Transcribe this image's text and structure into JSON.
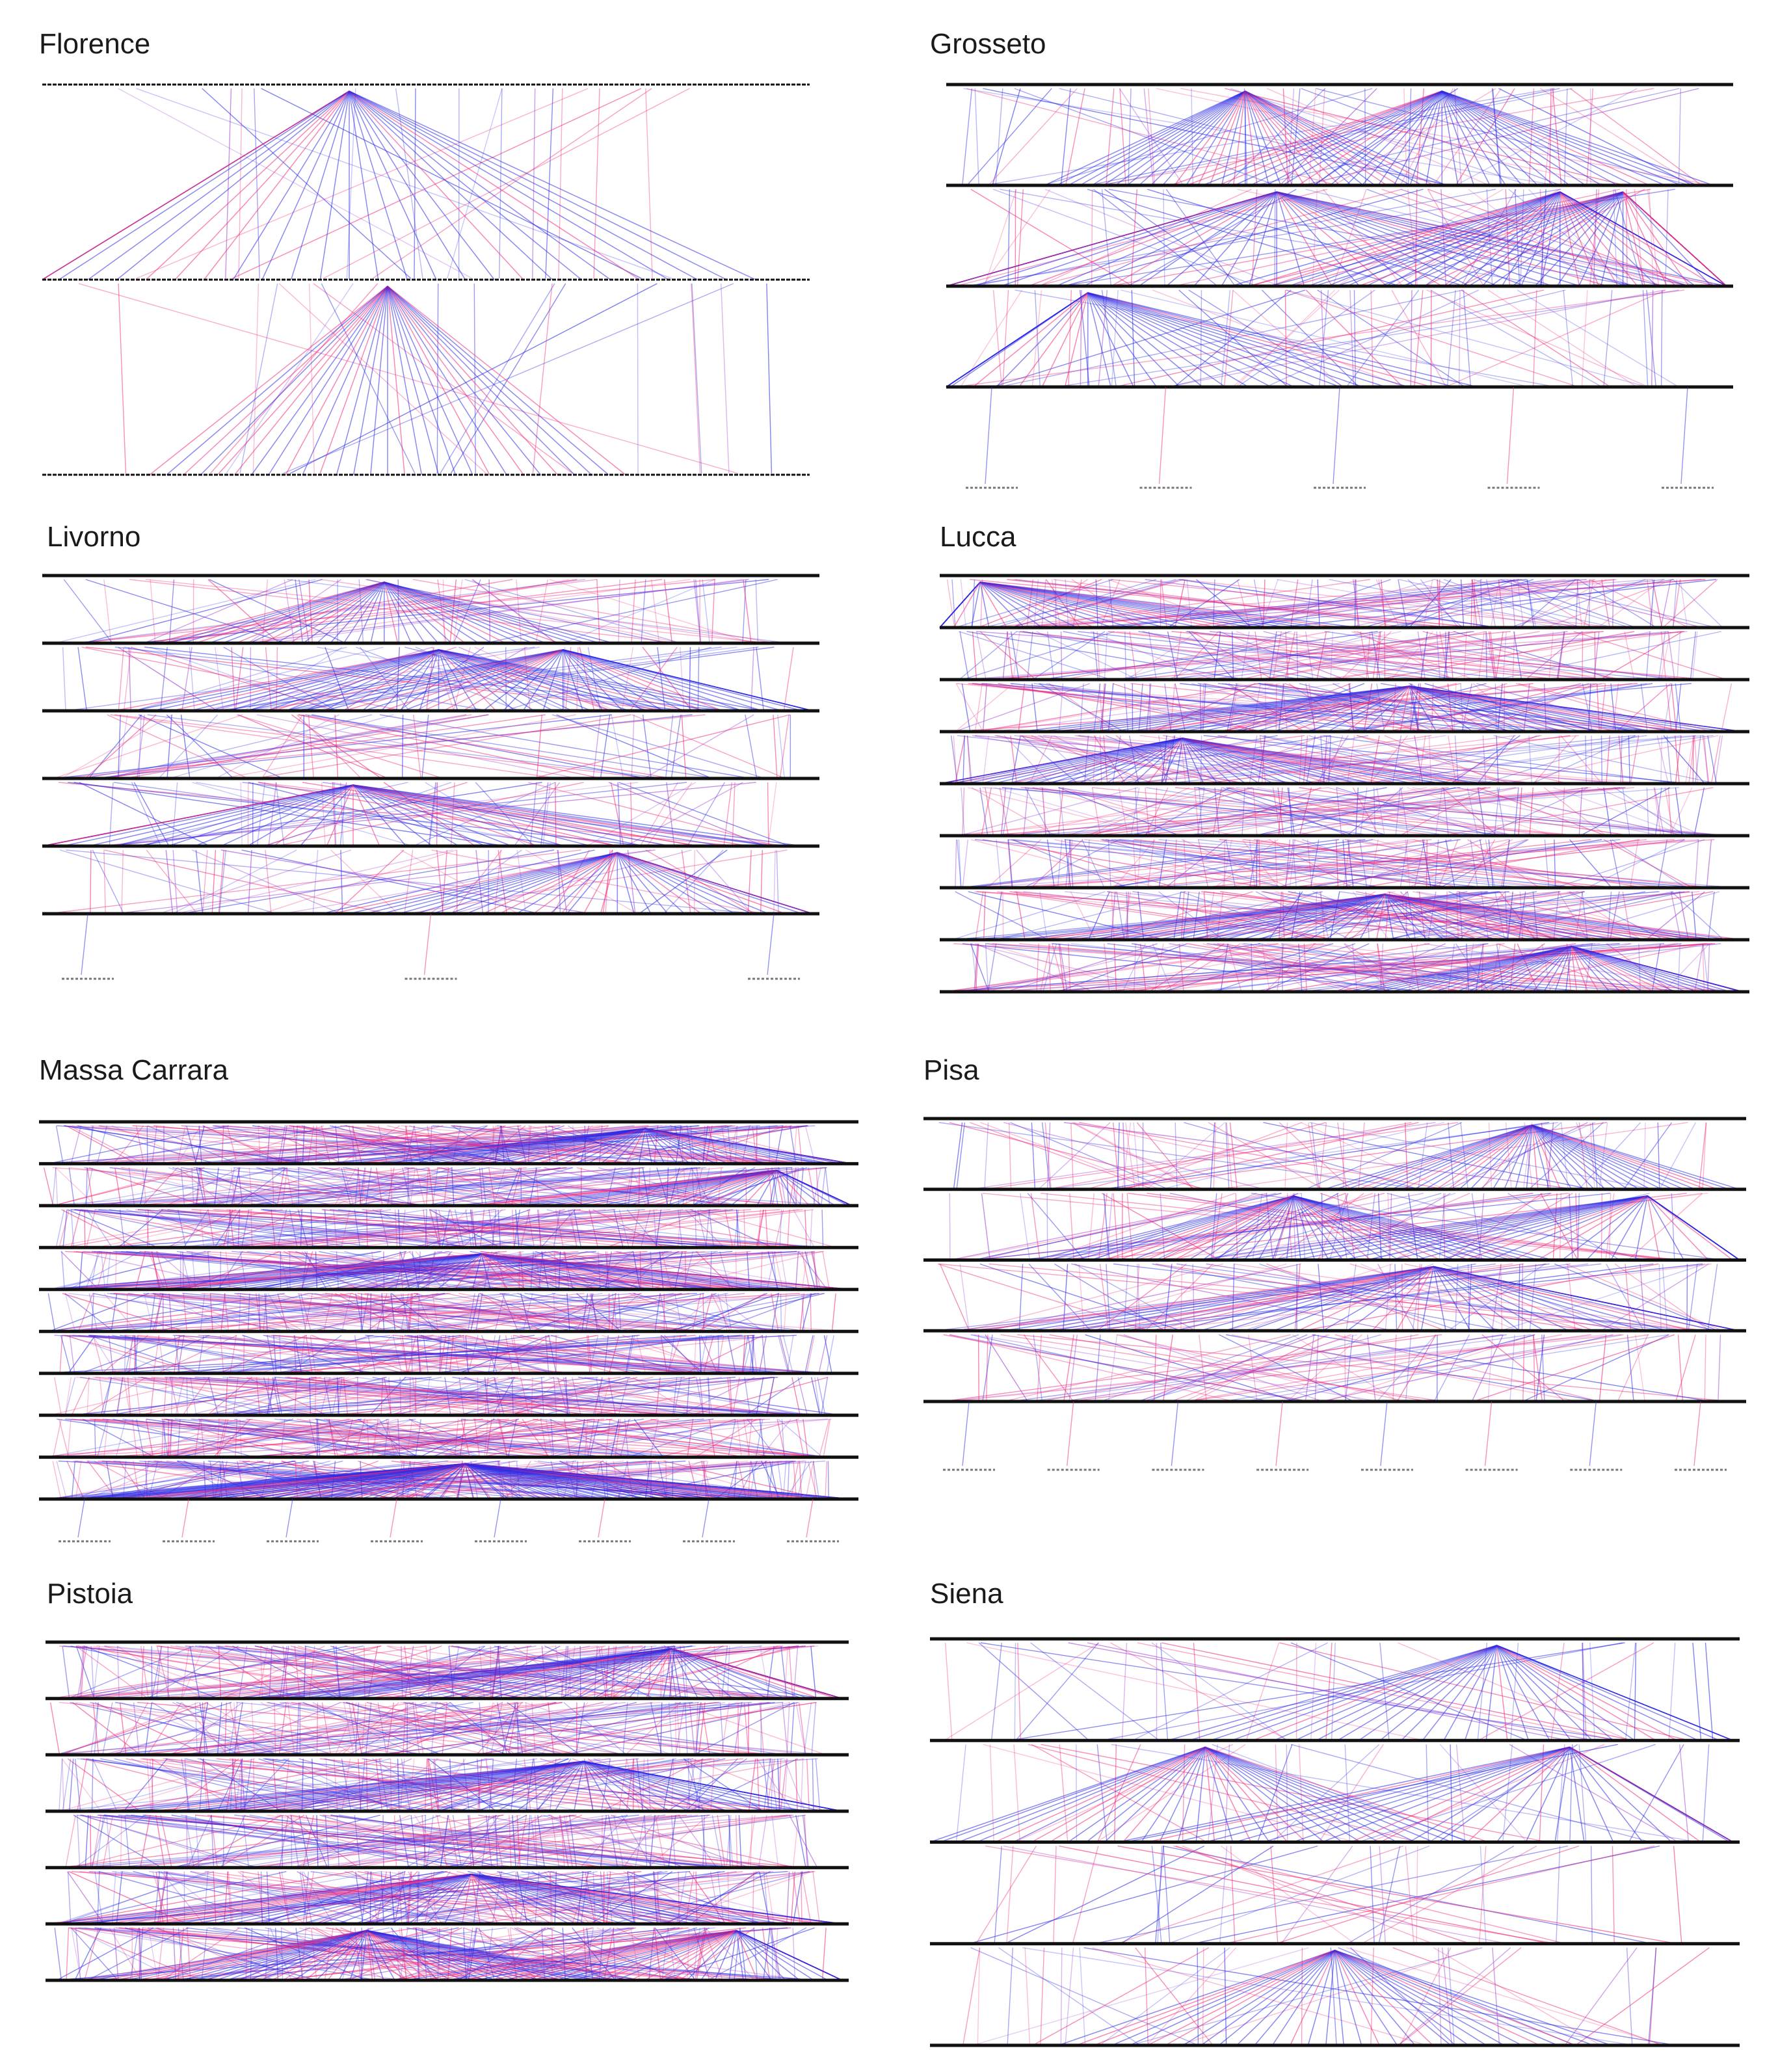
{
  "panels": [
    {
      "id": "florence",
      "title": "Florence",
      "layers": 3,
      "density": 1,
      "hubs": [
        [
          1,
          0.45
        ],
        [
          0,
          0.4
        ]
      ],
      "leaf_labels": 0
    },
    {
      "id": "grosseto",
      "title": "Grosseto",
      "layers": 4,
      "density": 3,
      "hubs": [
        [
          0,
          0.38
        ],
        [
          0,
          0.63
        ],
        [
          1,
          0.42
        ],
        [
          1,
          0.78
        ],
        [
          1,
          0.86
        ],
        [
          2,
          0.18
        ]
      ],
      "leaf_labels": 5
    },
    {
      "id": "livorno",
      "title": "Livorno",
      "layers": 6,
      "density": 3,
      "hubs": [
        [
          0,
          0.44
        ],
        [
          1,
          0.51
        ],
        [
          1,
          0.67
        ],
        [
          3,
          0.4
        ],
        [
          4,
          0.74
        ]
      ],
      "leaf_labels": 3
    },
    {
      "id": "lucca",
      "title": "Lucca",
      "layers": 9,
      "density": 6,
      "hubs": [
        [
          0,
          0.05
        ],
        [
          2,
          0.58
        ],
        [
          3,
          0.3
        ],
        [
          6,
          0.55
        ],
        [
          7,
          0.78
        ]
      ],
      "leaf_labels": 0
    },
    {
      "id": "massa-carrara",
      "title": "Massa Carrara",
      "layers": 10,
      "density": 8,
      "hubs": [
        [
          0,
          0.74
        ],
        [
          1,
          0.9
        ],
        [
          3,
          0.54
        ],
        [
          8,
          0.52
        ],
        [
          9,
          0.52
        ]
      ],
      "leaf_labels": 8
    },
    {
      "id": "pisa",
      "title": "Pisa",
      "layers": 5,
      "density": 4,
      "hubs": [
        [
          0,
          0.74
        ],
        [
          1,
          0.88
        ],
        [
          2,
          0.62
        ],
        [
          1,
          0.45
        ]
      ],
      "leaf_labels": 8
    },
    {
      "id": "pistoia",
      "title": "Pistoia",
      "layers": 7,
      "density": 8,
      "hubs": [
        [
          0,
          0.78
        ],
        [
          2,
          0.67
        ],
        [
          4,
          0.53
        ],
        [
          5,
          0.4
        ],
        [
          5,
          0.86
        ]
      ],
      "leaf_labels": 0
    },
    {
      "id": "siena",
      "title": "Siena",
      "layers": 5,
      "density": 2,
      "hubs": [
        [
          0,
          0.7
        ],
        [
          1,
          0.34
        ],
        [
          1,
          0.79
        ],
        [
          3,
          0.5
        ]
      ],
      "leaf_labels": 0
    }
  ],
  "colors": {
    "blue": "#2a2ae6",
    "pink": "#f0287a",
    "purple": "#9b3ad0",
    "black": "#111111",
    "title": "#1a1a1a"
  }
}
